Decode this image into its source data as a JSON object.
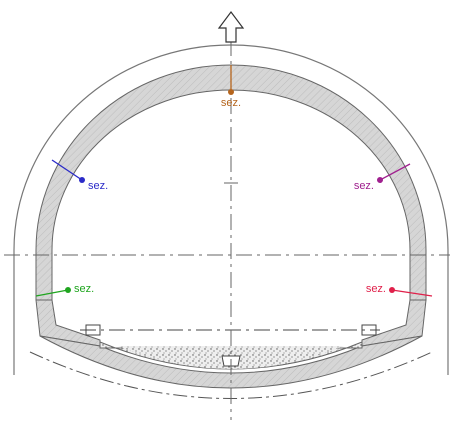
{
  "sections": [
    {
      "label": "sez.",
      "color": "#b5651d"
    },
    {
      "label": "sez.",
      "color": "#2b2bc8"
    },
    {
      "label": "sez.",
      "color": "#a0208f"
    },
    {
      "label": "sez.",
      "color": "#1fa51f"
    },
    {
      "label": "sez.",
      "color": "#e0204a"
    }
  ]
}
